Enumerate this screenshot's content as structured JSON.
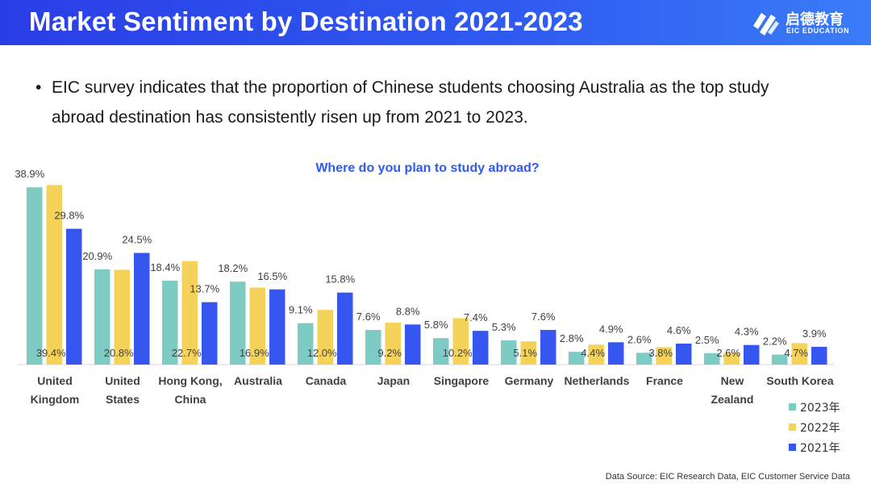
{
  "header": {
    "title": "Market Sentiment by Destination 2021-2023"
  },
  "logo": {
    "name_cn": "启德教育",
    "name_en": "EIC EDUCATION",
    "mark": "eic-logo-icon"
  },
  "bullet": {
    "dot": "•",
    "text": "EIC survey indicates that the proportion of Chinese students choosing Australia as the top study abroad destination has consistently risen up from 2021 to 2023."
  },
  "footnote": "Data Source: EIC Research Data, EIC Customer Service Data",
  "colors": {
    "header": "#2a3ee6",
    "s2023": "#7ecbc4",
    "s2022": "#f5d35a",
    "s2021": "#3557f0",
    "title": "#2f5bf0"
  },
  "chart_data": {
    "type": "bar",
    "title": "Where do you plan to study abroad?",
    "categories": [
      [
        "United",
        "Kingdom"
      ],
      [
        "United",
        "States"
      ],
      [
        "Hong Kong,",
        "China"
      ],
      [
        "Australia"
      ],
      [
        "Canada"
      ],
      [
        "Japan"
      ],
      [
        "Singapore"
      ],
      [
        "Germany"
      ],
      [
        "Netherlands"
      ],
      [
        "France"
      ],
      [
        "New",
        "Zealand"
      ],
      [
        "South Korea"
      ]
    ],
    "series": [
      {
        "name": "2023年",
        "color": "#7ecbc4",
        "values": [
          38.9,
          20.9,
          18.4,
          18.2,
          9.1,
          7.6,
          5.8,
          5.3,
          2.8,
          2.6,
          2.5,
          2.2
        ],
        "labels": [
          "38.9%",
          "20.9%",
          "18.4%",
          "18.2%",
          "9.1%",
          "7.6%",
          "5.8%",
          "5.3%",
          "2.8%",
          "2.6%",
          "2.5%",
          "2.2%"
        ]
      },
      {
        "name": "2022年",
        "color": "#f5d35a",
        "values": [
          39.4,
          20.8,
          22.7,
          16.9,
          12.0,
          9.2,
          10.2,
          5.1,
          4.4,
          3.8,
          2.6,
          4.7
        ],
        "labels": [
          "39.4%",
          "20.8%",
          "22.7%",
          "16.9%",
          "12.0%",
          "9.2%",
          "10.2%",
          "5.1%",
          "4.4%",
          "3.8%",
          "2.6%",
          "4.7%"
        ]
      },
      {
        "name": "2021年",
        "color": "#3557f0",
        "values": [
          29.8,
          24.5,
          13.7,
          16.5,
          15.8,
          8.8,
          7.4,
          7.6,
          4.9,
          4.6,
          4.3,
          3.9
        ],
        "labels": [
          "29.8%",
          "24.5%",
          "13.7%",
          "16.5%",
          "15.8%",
          "8.8%",
          "7.4%",
          "7.6%",
          "4.9%",
          "4.6%",
          "4.3%",
          "3.9%"
        ]
      }
    ],
    "ylim": [
      0,
      40
    ],
    "grid": false,
    "legend": "bottom-right"
  }
}
